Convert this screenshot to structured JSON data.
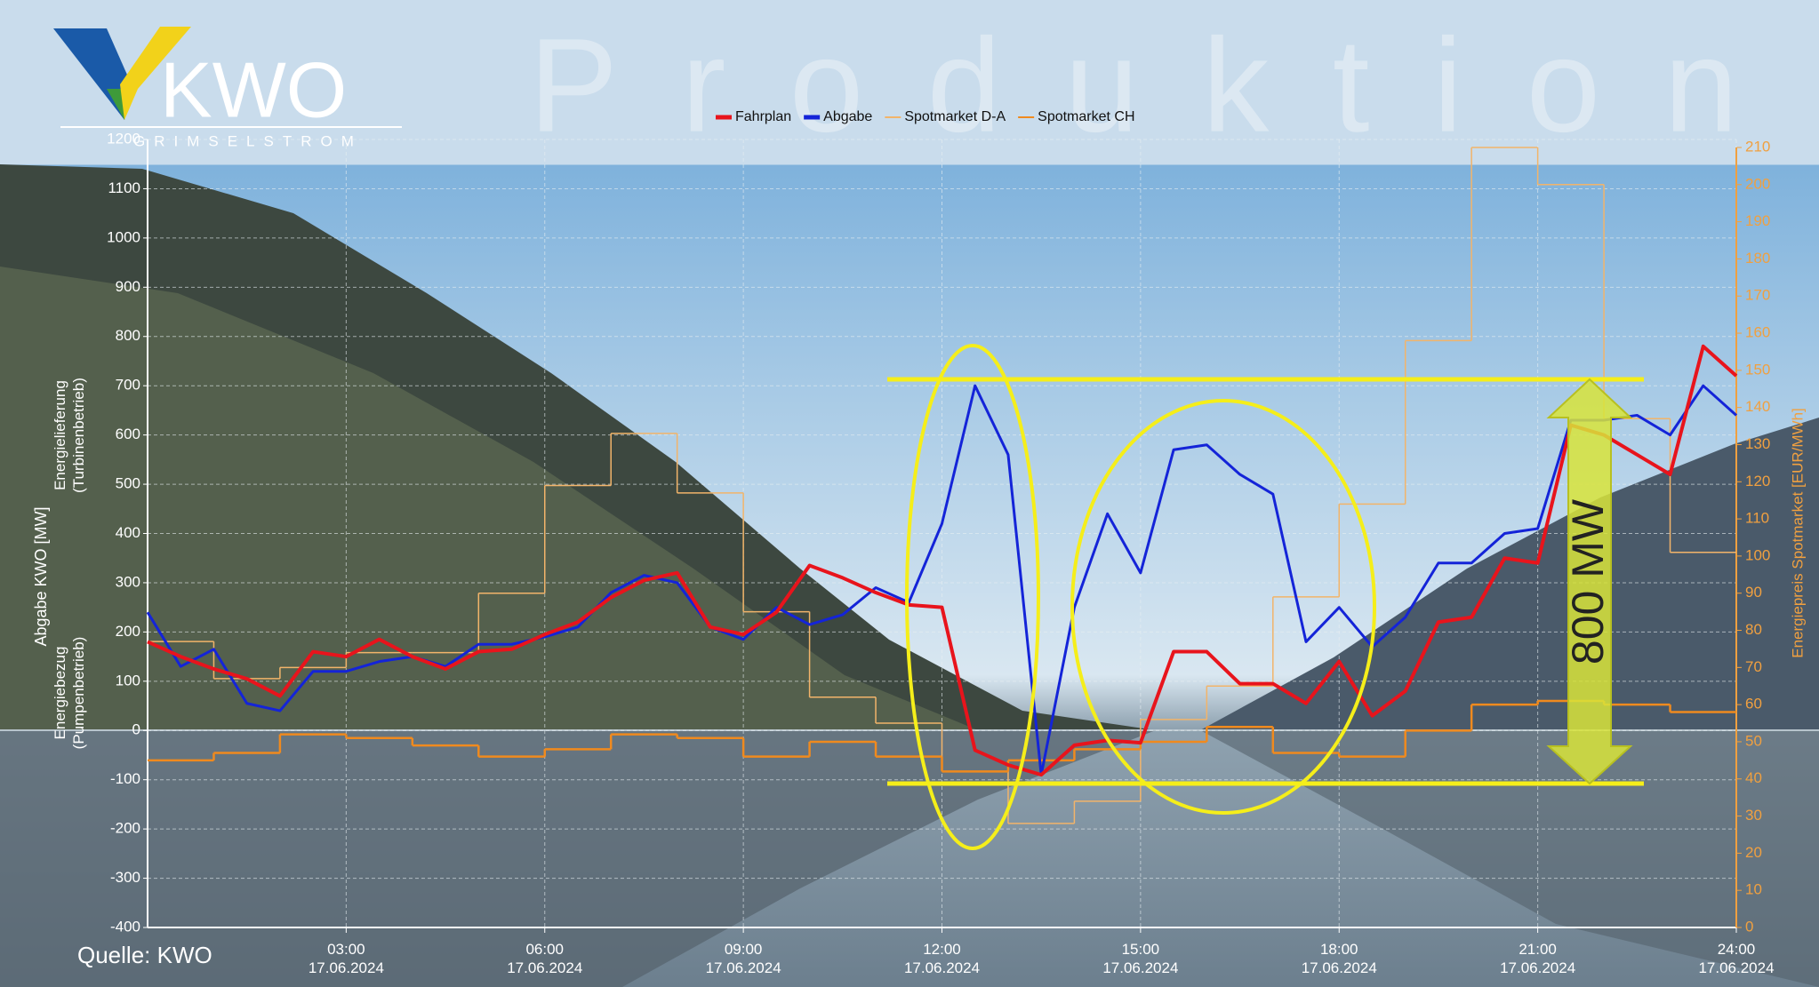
{
  "chart_data": {
    "type": "line",
    "title": "Produktion",
    "logo": {
      "name": "KWO",
      "subtitle": "GRIMSELSTROM"
    },
    "source": "Quelle: KWO",
    "annotation": "800 MW",
    "y_label": "Abgabe KWO [MW]",
    "y_label_upper": "Energielieferung\n(Turbinenbetrieb)",
    "y_label_lower": "Energiebezug\n(Pumpenbetrieb)",
    "y2_label": "Energiepreis Spotmarket [EUR/MWh]",
    "legend": "top",
    "grid": true,
    "xlim": [
      0,
      24
    ],
    "xticks": [
      {
        "value": 3,
        "label": "03:00\n17.06.2024"
      },
      {
        "value": 6,
        "label": "06:00\n17.06.2024"
      },
      {
        "value": 9,
        "label": "09:00\n17.06.2024"
      },
      {
        "value": 12,
        "label": "12:00\n17.06.2024"
      },
      {
        "value": 15,
        "label": "15:00\n17.06.2024"
      },
      {
        "value": 18,
        "label": "18:00\n17.06.2024"
      },
      {
        "value": 21,
        "label": "21:00\n17.06.2024"
      },
      {
        "value": 24,
        "label": "24:00\n17.06.2024"
      }
    ],
    "ylim": [
      -400,
      1200
    ],
    "yticks": [
      -400,
      -300,
      -200,
      -100,
      0,
      100,
      200,
      300,
      400,
      500,
      600,
      700,
      800,
      900,
      1000,
      1100,
      1200
    ],
    "y2lim": [
      0,
      210
    ],
    "y2ticks": [
      0,
      10,
      20,
      30,
      40,
      50,
      60,
      70,
      80,
      90,
      100,
      110,
      120,
      130,
      140,
      150,
      160,
      170,
      180,
      190,
      200,
      210
    ],
    "x": [
      0,
      0.5,
      1,
      1.5,
      2,
      2.5,
      3,
      3.5,
      4,
      4.5,
      5,
      5.5,
      6,
      6.5,
      7,
      7.5,
      8,
      8.5,
      9,
      9.5,
      10,
      10.5,
      11,
      11.5,
      12,
      12.5,
      13,
      13.5,
      14,
      14.5,
      15,
      15.5,
      16,
      16.5,
      17,
      17.5,
      18,
      18.5,
      19,
      19.5,
      20,
      20.5,
      21,
      21.5,
      22,
      22.5,
      23,
      23.5,
      24
    ],
    "series": [
      {
        "name": "Fahrplan",
        "color": "#e8141c",
        "width": 4,
        "values": [
          180,
          150,
          125,
          105,
          70,
          160,
          150,
          185,
          150,
          125,
          160,
          165,
          195,
          220,
          270,
          305,
          320,
          210,
          195,
          240,
          335,
          310,
          280,
          255,
          250,
          -40,
          -70,
          -90,
          -30,
          -20,
          -25,
          160,
          160,
          95,
          95,
          55,
          140,
          30,
          80,
          220,
          230,
          350,
          340,
          620,
          600,
          560,
          520,
          780,
          720
        ]
      },
      {
        "name": "Abgabe",
        "color": "#1424d8",
        "width": 3,
        "values": [
          240,
          130,
          165,
          55,
          40,
          120,
          120,
          140,
          150,
          130,
          175,
          175,
          190,
          210,
          280,
          315,
          300,
          210,
          185,
          250,
          215,
          235,
          290,
          260,
          420,
          700,
          560,
          -90,
          250,
          440,
          320,
          570,
          580,
          520,
          480,
          180,
          250,
          170,
          230,
          340,
          340,
          400,
          410,
          630,
          630,
          640,
          600,
          700,
          640
        ]
      },
      {
        "name": "Spotmarket D-A",
        "color": "#f2b46a",
        "width": 1.5,
        "axis": "y2",
        "step": true,
        "x": [
          0,
          1,
          2,
          3,
          4,
          5,
          6,
          7,
          8,
          9,
          10,
          11,
          12,
          13,
          14,
          15,
          16,
          17,
          18,
          19,
          20,
          21,
          22,
          23
        ],
        "values": [
          77,
          67,
          70,
          74,
          74,
          90,
          119,
          133,
          117,
          85,
          62,
          55,
          42,
          28,
          34,
          56,
          65,
          89,
          114,
          158,
          210,
          200,
          137,
          101
        ]
      },
      {
        "name": "Spotmarket CH",
        "color": "#f08a1e",
        "width": 2.5,
        "axis": "y2",
        "step": true,
        "x": [
          0,
          1,
          2,
          3,
          4,
          5,
          6,
          7,
          8,
          9,
          10,
          11,
          12,
          13,
          14,
          15,
          16,
          17,
          18,
          19,
          20,
          21,
          22,
          23
        ],
        "values": [
          45,
          47,
          52,
          51,
          49,
          46,
          48,
          52,
          51,
          46,
          50,
          46,
          42,
          45,
          48,
          50,
          54,
          47,
          46,
          53,
          60,
          61,
          60,
          58
        ]
      }
    ]
  }
}
